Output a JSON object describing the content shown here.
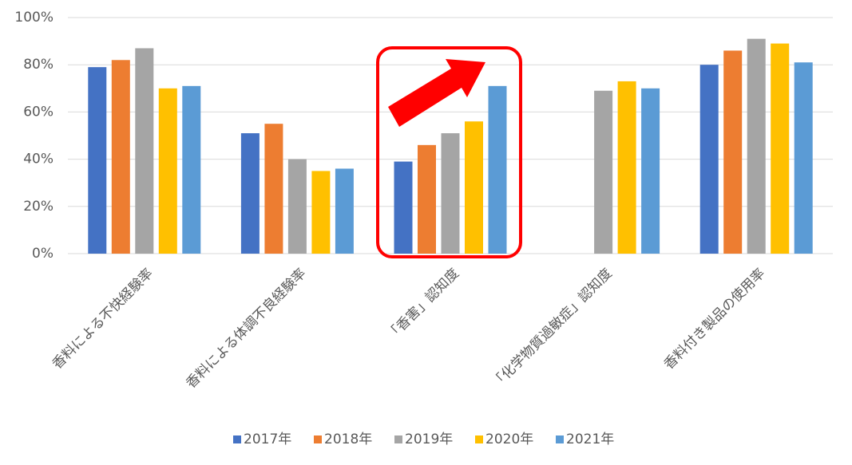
{
  "chart_data": {
    "type": "bar",
    "categories": [
      "香料による不快経験率",
      "香料による体調不良経験率",
      "「香害」認知度",
      "「化学物質過敏症」認知度",
      "香料付き製品の使用率"
    ],
    "series": [
      {
        "name": "2017年",
        "color": "#4472c4",
        "values": [
          79,
          51,
          39,
          null,
          80
        ]
      },
      {
        "name": "2018年",
        "color": "#ed7d31",
        "values": [
          82,
          55,
          46,
          null,
          86
        ]
      },
      {
        "name": "2019年",
        "color": "#a5a5a5",
        "values": [
          87,
          40,
          51,
          69,
          91
        ]
      },
      {
        "name": "2020年",
        "color": "#ffc000",
        "values": [
          70,
          35,
          56,
          73,
          89
        ]
      },
      {
        "name": "2021年",
        "color": "#5b9bd5",
        "values": [
          71,
          36,
          71,
          70,
          81
        ]
      }
    ],
    "ylim": [
      0,
      100
    ],
    "yticks": [
      {
        "value": 0,
        "label": "0%"
      },
      {
        "value": 20,
        "label": "20%"
      },
      {
        "value": 40,
        "label": "40%"
      },
      {
        "value": 60,
        "label": "60%"
      },
      {
        "value": 80,
        "label": "80%"
      },
      {
        "value": 100,
        "label": "100%"
      }
    ],
    "grid": true,
    "legend": "bottom"
  }
}
